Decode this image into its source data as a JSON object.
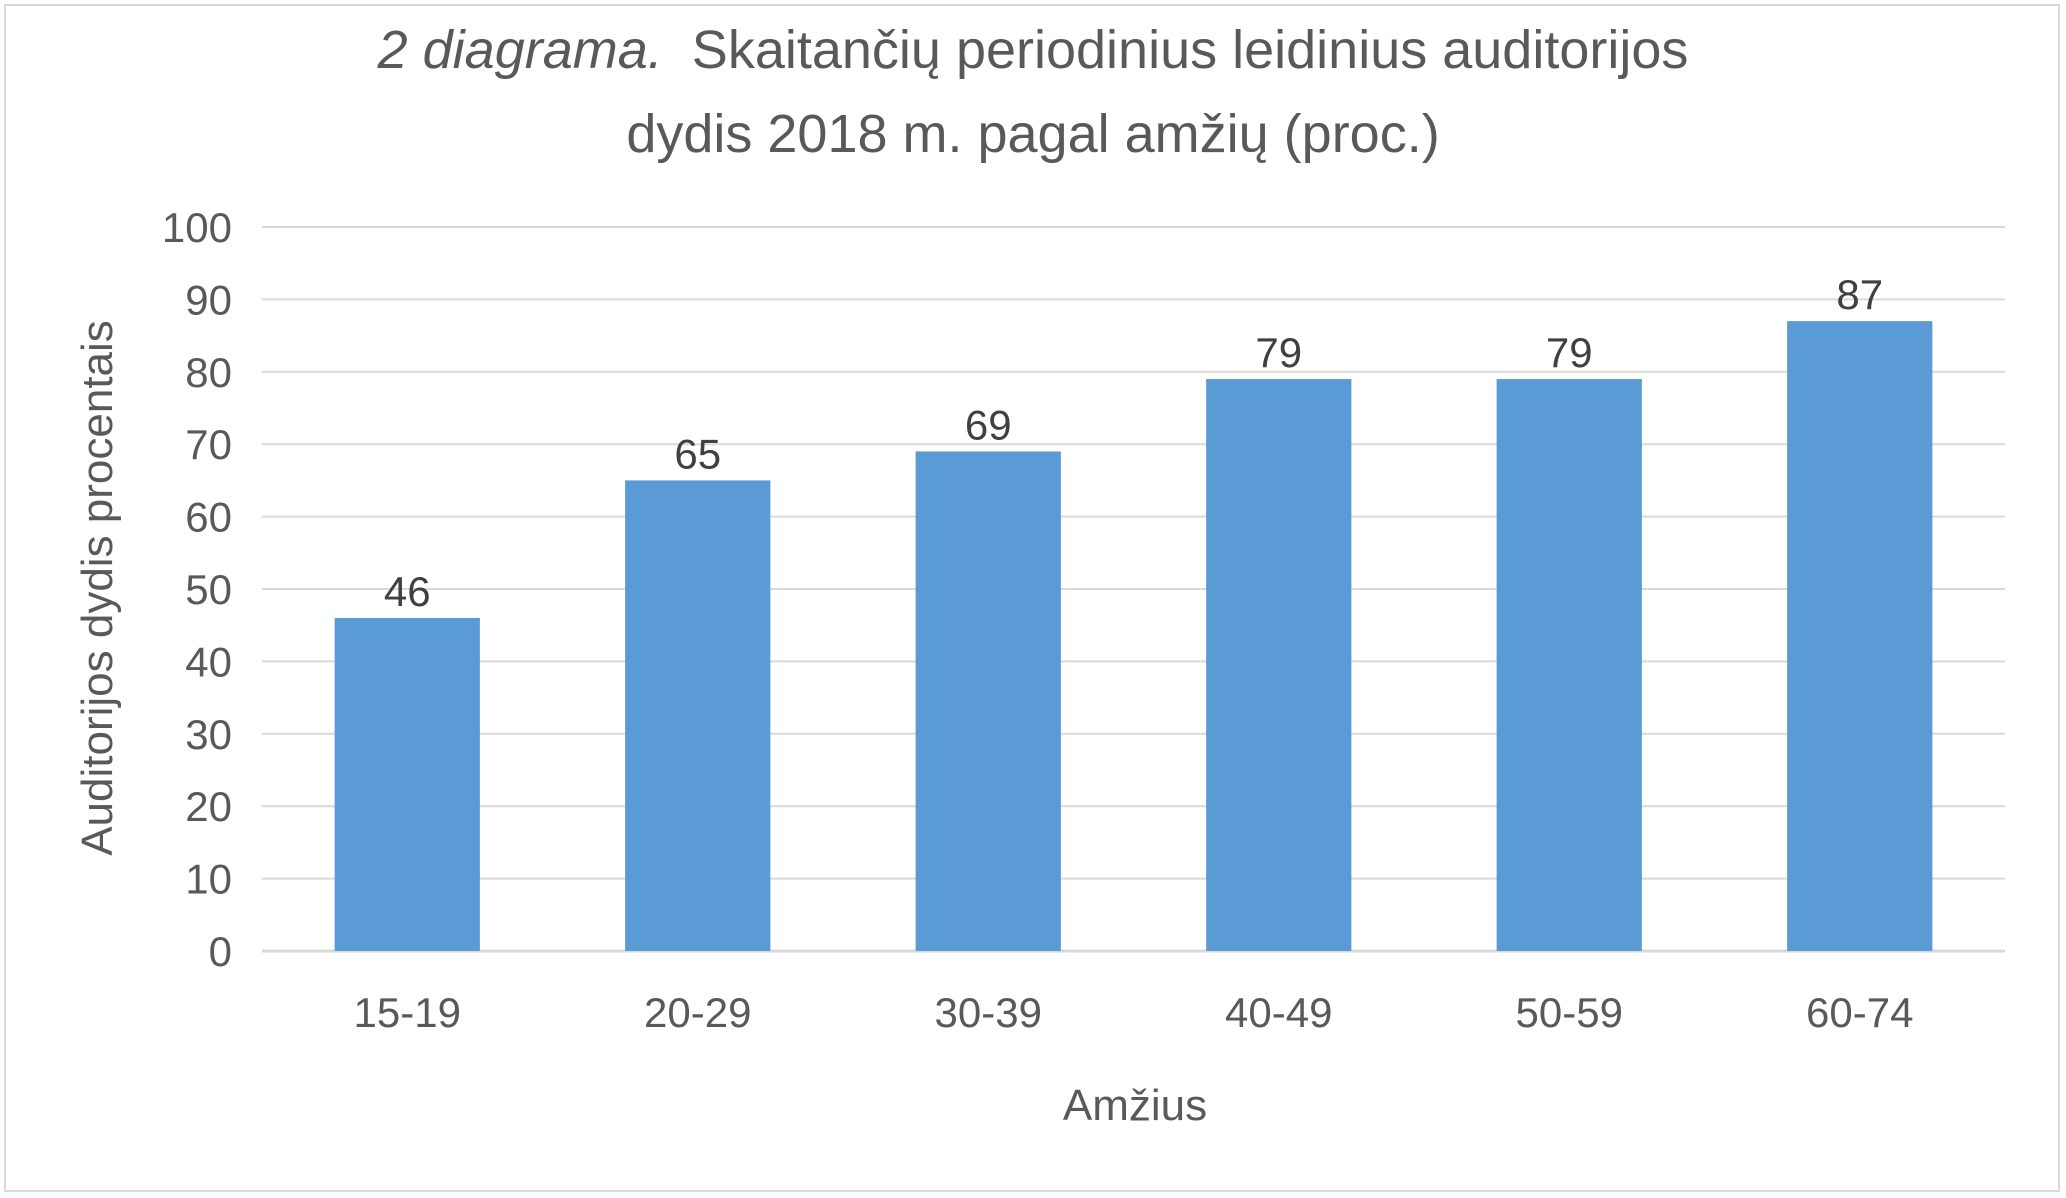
{
  "chart_data": {
    "type": "bar",
    "title_prefix": "2 diagrama.",
    "title_line1": "Skaitančių periodinius leidinius auditorijos",
    "title_line2": "dydis 2018 m. pagal amžių (proc.)",
    "xlabel": "Amžius",
    "ylabel": "Auditorijos dydis procentais",
    "categories": [
      "15-19",
      "20-29",
      "30-39",
      "40-49",
      "50-59",
      "60-74"
    ],
    "values": [
      46,
      65,
      69,
      79,
      79,
      87
    ],
    "data_labels": [
      "46",
      "65",
      "69",
      "79",
      "79",
      "87"
    ],
    "ylim": [
      0,
      100
    ],
    "yticks": [
      "0",
      "10",
      "20",
      "30",
      "40",
      "50",
      "60",
      "70",
      "80",
      "90",
      "100"
    ],
    "grid": true,
    "legend": "none",
    "colors": {
      "bar": "#5b9bd5",
      "grid": "#d9d9d9",
      "text": "#595959"
    }
  }
}
